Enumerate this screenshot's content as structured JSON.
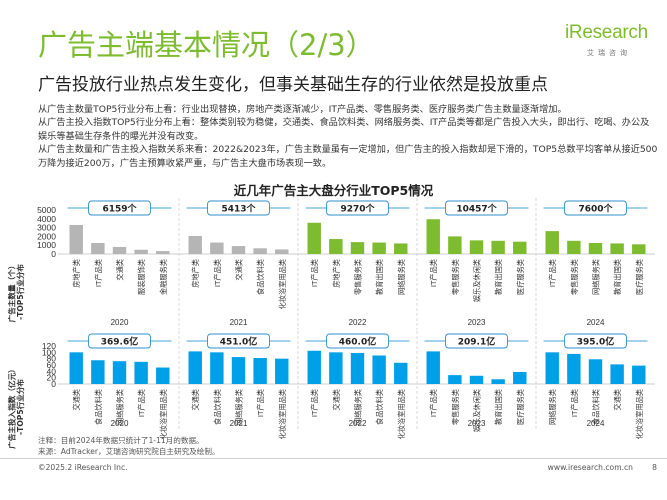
{
  "header": {
    "title": "广告主端基本情况（2/3）",
    "subtitle": "广告投放行业热点发生变化，但事关基础生存的行业依然是投放重点",
    "logo_text": "iResearch",
    "logo_sub": "艾瑞咨询"
  },
  "body": [
    "从广告主数量TOP5行业分布上看：行业出现替换，房地产类逐渐减少，IT产品类、零售服务类、医疗服务类广告主数量逐渐增加。",
    "从广告主投入指数TOP5行业分布上看：整体类别较为稳健，交通类、食品饮料类、网络服务类、IT产品类等都是广告投入大头，即出行、吃喝、办公及娱乐等基础生存条件的曝光并没有改变。",
    "从广告主数量和广告主投入指数关系来看：2022&2023年，广告主数量虽有一定增加，但广告主的投入指数却是下滑的，TOP5总数平均客单从接近500万降为接近200万，广告主预算收紧严重，与广告主大盘市场表现一致。"
  ],
  "footer": {
    "note1": "注释：目前2024年数据只统计了1-11月的数据。",
    "note2": "来源：AdTracker，艾瑞咨询研究院自主研究及绘制。",
    "copyright": "©2025.2 iResearch Inc.",
    "site": "www.iresearch.com.cn",
    "page": "8"
  },
  "colors": {
    "brand_green": "#7dbb2f",
    "blue": "#00a0e9",
    "gray": "#b5b5b5",
    "bubble_border": "#2e8fce",
    "guide_line": "#4aa3d8"
  },
  "chart_data": {
    "type": "bar",
    "title": "近几年广告主大盘分行业TOP5情况",
    "years": [
      "2020",
      "2021",
      "2022",
      "2023",
      "2024"
    ],
    "top": {
      "ylabel": "广告主数量（个）-TOP5行业分布",
      "yticks": [
        0,
        1000,
        2000,
        3000,
        4000,
        5000
      ],
      "ylim": [
        0,
        5000
      ],
      "totals": [
        "6159个",
        "5413个",
        "9270个",
        "10457个",
        "7600个"
      ],
      "groups": [
        {
          "year": "2020",
          "color": "#b5b5b5",
          "categories": [
            "房地产类",
            "IT产品类",
            "交通类",
            "服装服饰类",
            "金融服务类"
          ],
          "values": [
            3300,
            1250,
            800,
            480,
            330
          ]
        },
        {
          "year": "2021",
          "color": "#b5b5b5",
          "categories": [
            "房地产类",
            "IT产品类",
            "交通类",
            "食品饮料类",
            "化妆浴室用品类"
          ],
          "values": [
            2050,
            1300,
            900,
            650,
            520
          ]
        },
        {
          "year": "2022",
          "color": "#7dbb2f",
          "categories": [
            "IT产品类",
            "房地产类",
            "零售服务类",
            "教育出国类",
            "网络服务类"
          ],
          "values": [
            3550,
            1700,
            1350,
            1300,
            1200
          ]
        },
        {
          "year": "2023",
          "color": "#7dbb2f",
          "categories": [
            "IT产品类",
            "零售服务类",
            "娱乐及休闲类",
            "教育出国类",
            "医疗服务类"
          ],
          "values": [
            3950,
            2000,
            1550,
            1500,
            1400
          ]
        },
        {
          "year": "2024",
          "color": "#7dbb2f",
          "categories": [
            "IT产品类",
            "零售服务类",
            "网络服务类",
            "教育出国类",
            "医疗服务类"
          ],
          "values": [
            2600,
            1500,
            1250,
            1200,
            1100
          ]
        }
      ]
    },
    "bottom": {
      "ylabel": "广告主投入指数（亿元）-TOP5行业分布",
      "yticks": [
        0,
        20,
        40,
        60,
        80,
        100,
        120
      ],
      "ylim": [
        0,
        120
      ],
      "totals": [
        "369.6亿",
        "451.0亿",
        "460.0亿",
        "209.1亿",
        "395.0亿"
      ],
      "groups": [
        {
          "year": "2020",
          "color": "#00a0e9",
          "categories": [
            "交通类",
            "食品饮料类",
            "网络服务类",
            "IT产品类",
            "化妆浴室用品类"
          ],
          "values": [
            100,
            75,
            72,
            70,
            52
          ]
        },
        {
          "year": "2021",
          "color": "#00a0e9",
          "categories": [
            "交通类",
            "食品饮料类",
            "网络服务类",
            "IT产品类",
            "化妆浴室用品类"
          ],
          "values": [
            103,
            100,
            85,
            82,
            80
          ]
        },
        {
          "year": "2022",
          "color": "#00a0e9",
          "categories": [
            "IT产品类",
            "交通类",
            "网络服务类",
            "食品饮料类",
            "化妆浴室用品类"
          ],
          "values": [
            105,
            100,
            98,
            90,
            67
          ]
        },
        {
          "year": "2023",
          "color": "#00a0e9",
          "categories": [
            "IT产品类",
            "零售服务类",
            "娱乐及休闲类",
            "教育出国类",
            "医疗服务类"
          ],
          "values": [
            103,
            28,
            26,
            15,
            38
          ]
        },
        {
          "year": "2024",
          "color": "#00a0e9",
          "categories": [
            "网络服务类",
            "IT产品类",
            "食品饮料类",
            "交通类",
            "化妆浴室用品类"
          ],
          "values": [
            100,
            95,
            78,
            62,
            58
          ]
        }
      ]
    }
  }
}
